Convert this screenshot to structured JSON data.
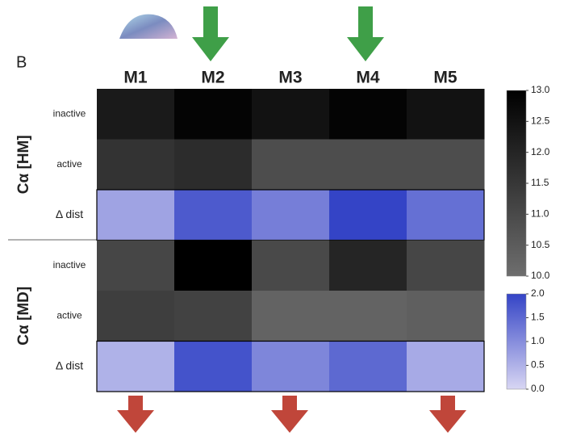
{
  "chart_data": {
    "type": "heatmap",
    "panel_label": "B",
    "columns": [
      "M1",
      "M2",
      "M3",
      "M4",
      "M5"
    ],
    "groups": [
      {
        "label": "Cα [HM]",
        "rows": [
          {
            "label": "inactive",
            "colorbar": 0,
            "values": [
              12.3,
              12.9,
              12.5,
              12.9,
              12.5
            ]
          },
          {
            "label": "active",
            "colorbar": 0,
            "values": [
              11.6,
              11.8,
              10.9,
              10.9,
              10.9
            ]
          },
          {
            "label": "Δ dist",
            "colorbar": 1,
            "values": [
              0.7,
              1.7,
              1.2,
              2.0,
              1.4
            ]
          }
        ]
      },
      {
        "label": "Cα [MD]",
        "rows": [
          {
            "label": "inactive",
            "colorbar": 0,
            "values": [
              11.1,
              13.0,
              11.0,
              12.0,
              11.1
            ]
          },
          {
            "label": "active",
            "colorbar": 0,
            "values": [
              11.3,
              11.2,
              10.3,
              10.3,
              10.4
            ]
          },
          {
            "label": "Δ dist",
            "colorbar": 1,
            "values": [
              0.5,
              1.8,
              1.1,
              1.5,
              0.6
            ]
          }
        ]
      }
    ],
    "colorbars": [
      {
        "lim": [
          10,
          13
        ],
        "colors": [
          "#6e6e6e",
          "#000000"
        ],
        "ticks": [
          {
            "value": 10,
            "label": "10.0"
          },
          {
            "value": 10.5,
            "label": "10.5"
          },
          {
            "value": 11,
            "label": "11.0"
          },
          {
            "value": 11.5,
            "label": "11.5"
          },
          {
            "value": 12,
            "label": "12.0"
          },
          {
            "value": 12.5,
            "label": "12.5"
          },
          {
            "value": 13,
            "label": "13.0"
          }
        ]
      },
      {
        "lim": [
          0,
          2
        ],
        "colors": [
          "#d8d6f3",
          "#3444c6"
        ],
        "ticks": [
          {
            "value": 0,
            "label": "0.0"
          },
          {
            "value": 0.5,
            "label": "0.5"
          },
          {
            "value": 1,
            "label": "1.0"
          },
          {
            "value": 1.5,
            "label": "1.5"
          },
          {
            "value": 2,
            "label": "2.0"
          }
        ]
      }
    ]
  }
}
